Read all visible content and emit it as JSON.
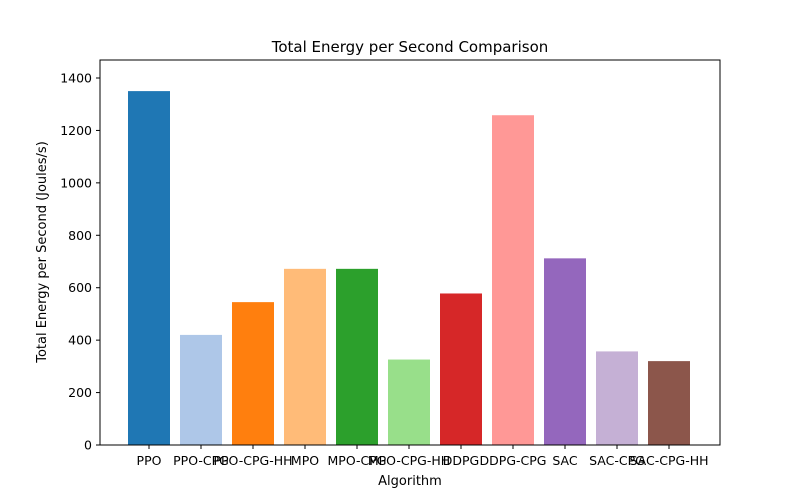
{
  "chart_data": {
    "type": "bar",
    "title": "Total Energy per Second Comparison",
    "xlabel": "Algorithm",
    "ylabel": "Total Energy per Second (Joules/s)",
    "categories": [
      "PPO",
      "PPO-CPG",
      "PPO-CPG-HH",
      "MPO",
      "MPO-CPG",
      "MPO-CPG-HH",
      "DDPG",
      "DDPG-CPG",
      "SAC",
      "SAC-CPG",
      "SAC-CPG-HH"
    ],
    "values": [
      1350,
      420,
      545,
      672,
      672,
      326,
      578,
      1258,
      712,
      357,
      320
    ],
    "colors": [
      "#1f77b4",
      "#aec7e8",
      "#ff7f0e",
      "#ffbb78",
      "#2ca02c",
      "#98df8a",
      "#d62728",
      "#ff9896",
      "#9467bd",
      "#c5b0d5",
      "#8c564b"
    ],
    "ylim": [
      0,
      1400
    ],
    "yticks": [
      0,
      200,
      400,
      600,
      800,
      1000,
      1200,
      1400
    ],
    "grid": false,
    "legend": "none"
  }
}
